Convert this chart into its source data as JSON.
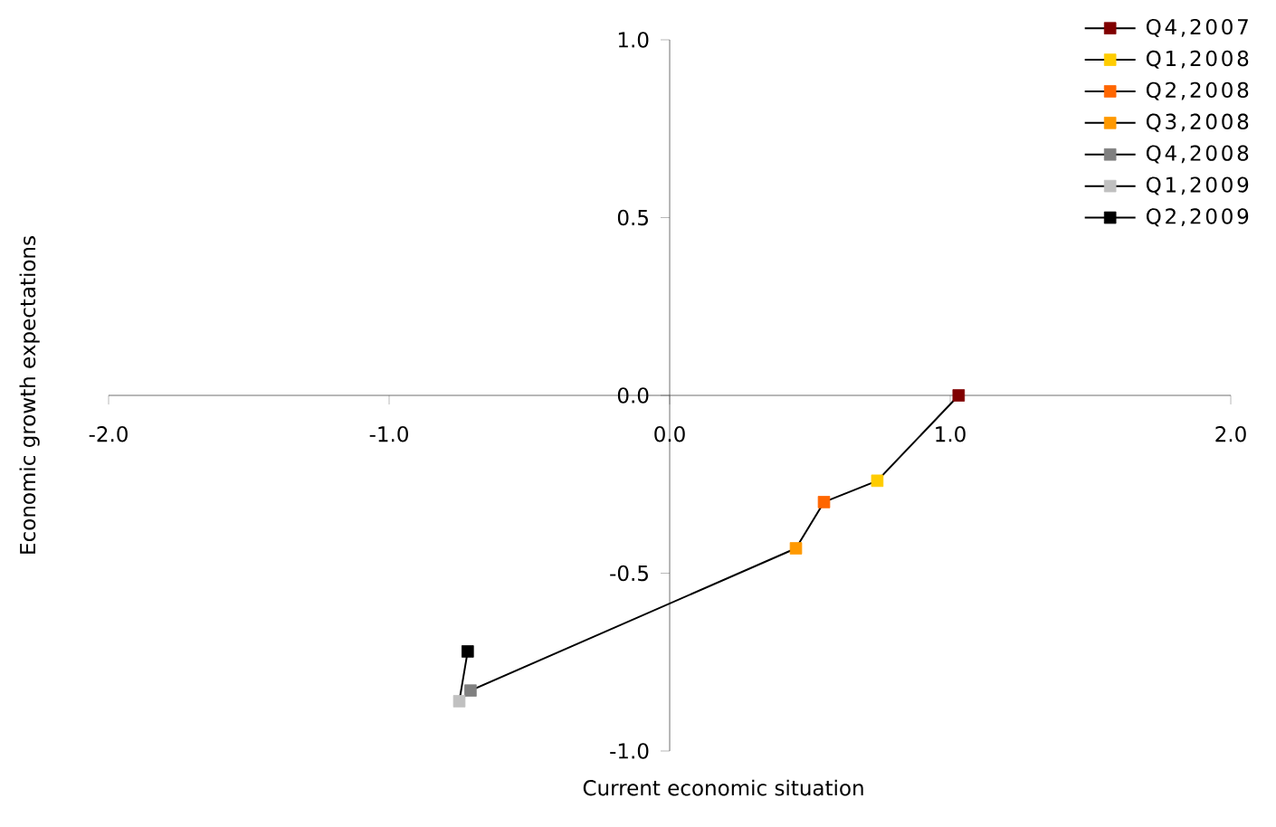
{
  "chart_data": {
    "type": "line",
    "xlabel": "Current economic situation",
    "ylabel": "Economic growth expectations",
    "xlim": [
      -2,
      2
    ],
    "ylim": [
      -1,
      1
    ],
    "xticks": [
      {
        "value": -2,
        "label": "-2.0"
      },
      {
        "value": -1,
        "label": "-1.0"
      },
      {
        "value": 0,
        "label": "0.0"
      },
      {
        "value": 1,
        "label": "1.0"
      },
      {
        "value": 2,
        "label": "2.0"
      }
    ],
    "yticks": [
      {
        "value": -1,
        "label": "-1.0"
      },
      {
        "value": -0.5,
        "label": "-0.5"
      },
      {
        "value": 0,
        "label": "0.0"
      },
      {
        "value": 0.5,
        "label": "0.5"
      },
      {
        "value": 1,
        "label": "1.0"
      }
    ],
    "legend": "top right",
    "marker": "square",
    "line_style": "solid",
    "series": [
      {
        "marker": "none",
        "color": "#000000",
        "x": [
          1.03,
          0.74,
          0.55,
          0.45,
          -0.71,
          -0.75,
          -0.72
        ],
        "values": [
          0,
          -0.24,
          -0.3,
          -0.43,
          -0.83,
          -0.86,
          -0.72
        ]
      },
      {
        "type": "scatter",
        "name": "Q4,2007",
        "color": "#800000",
        "x": [
          1.03
        ],
        "values": [
          0
        ]
      },
      {
        "type": "scatter",
        "name": "Q1,2008",
        "color": "#ffcc00",
        "x": [
          0.74
        ],
        "values": [
          -0.24
        ]
      },
      {
        "type": "scatter",
        "name": "Q2,2008",
        "color": "#ff6600",
        "x": [
          0.55
        ],
        "values": [
          -0.3
        ]
      },
      {
        "type": "scatter",
        "name": "Q3,2008",
        "color": "#ff9900",
        "x": [
          0.45
        ],
        "values": [
          -0.43
        ]
      },
      {
        "type": "scatter",
        "name": "Q4,2008",
        "color": "#808080",
        "x": [
          -0.71
        ],
        "values": [
          -0.83
        ]
      },
      {
        "type": "scatter",
        "name": "Q1,2009",
        "color": "#c0c0c0",
        "x": [
          -0.75
        ],
        "values": [
          -0.86
        ]
      },
      {
        "type": "scatter",
        "name": "Q2,2009",
        "color": "#000000",
        "x": [
          -0.72
        ],
        "values": [
          -0.72
        ]
      }
    ]
  }
}
